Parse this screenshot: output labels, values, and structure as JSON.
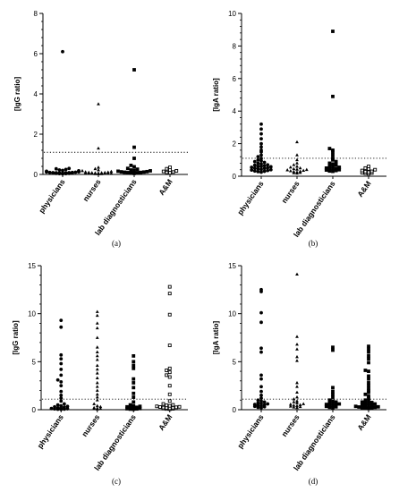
{
  "chart_data": [
    {
      "panel": "(a)",
      "type": "scatter",
      "ylabel": "[IgG ratio]",
      "ylim": [
        0,
        8
      ],
      "yticks": [
        0,
        2,
        4,
        6,
        8
      ],
      "cutoff": 1.1,
      "categories": [
        "physicians",
        "nurses",
        "lab diagnosticians",
        "A&M"
      ],
      "markers": [
        "circle",
        "triangle",
        "square",
        "open-square"
      ],
      "series": [
        {
          "values": [
            6.1,
            0.3,
            0.28,
            0.25,
            0.22,
            0.2,
            0.18,
            0.16,
            0.15,
            0.14,
            0.13,
            0.12,
            0.11,
            0.1,
            0.1,
            0.09,
            0.09,
            0.08,
            0.08,
            0.07,
            0.07,
            0.06,
            0.06,
            0.05,
            0.05,
            0.04,
            0.04,
            0.03
          ]
        },
        {
          "values": [
            3.5,
            1.3,
            0.35,
            0.28,
            0.22,
            0.18,
            0.15,
            0.12,
            0.11,
            0.1,
            0.09,
            0.08,
            0.08,
            0.07,
            0.07,
            0.06,
            0.06,
            0.05,
            0.05,
            0.04,
            0.04,
            0.03,
            0.03,
            0.02
          ]
        },
        {
          "values": [
            5.2,
            1.35,
            0.8,
            0.45,
            0.38,
            0.3,
            0.26,
            0.22,
            0.2,
            0.18,
            0.16,
            0.14,
            0.13,
            0.12,
            0.11,
            0.1,
            0.09,
            0.09,
            0.08,
            0.07,
            0.06,
            0.05
          ]
        },
        {
          "values": [
            0.35,
            0.28,
            0.22,
            0.18,
            0.15,
            0.12,
            0.1,
            0.08
          ]
        }
      ]
    },
    {
      "panel": "(b)",
      "type": "scatter",
      "ylabel": "[IgA ratio]",
      "ylim": [
        0,
        10
      ],
      "yticks": [
        0,
        2,
        4,
        6,
        8,
        10
      ],
      "cutoff": 1.1,
      "categories": [
        "physicians",
        "nurses",
        "lab diagnosticians",
        "A&M"
      ],
      "markers": [
        "circle",
        "triangle",
        "square",
        "open-square"
      ],
      "series": [
        {
          "values": [
            3.2,
            2.9,
            2.6,
            2.3,
            2.0,
            1.8,
            1.6,
            1.5,
            1.3,
            1.2,
            1.1,
            1.0,
            0.95,
            0.9,
            0.85,
            0.8,
            0.75,
            0.7,
            0.68,
            0.65,
            0.62,
            0.6,
            0.58,
            0.55,
            0.52,
            0.5,
            0.48,
            0.45,
            0.42,
            0.4,
            0.38,
            0.35,
            0.32,
            0.3,
            0.28,
            0.25
          ]
        },
        {
          "values": [
            2.1,
            1.3,
            1.0,
            0.8,
            0.7,
            0.6,
            0.55,
            0.5,
            0.45,
            0.42,
            0.4,
            0.38,
            0.35,
            0.32,
            0.3,
            0.28,
            0.25,
            0.22,
            0.2,
            0.18
          ]
        },
        {
          "values": [
            8.9,
            4.9,
            1.7,
            1.6,
            1.5,
            1.3,
            1.1,
            1.0,
            0.9,
            0.8,
            0.75,
            0.7,
            0.65,
            0.6,
            0.55,
            0.5,
            0.48,
            0.45,
            0.42,
            0.4,
            0.38,
            0.35,
            0.32,
            0.3
          ]
        },
        {
          "values": [
            0.6,
            0.5,
            0.45,
            0.4,
            0.35,
            0.3,
            0.28,
            0.25,
            0.22,
            0.2,
            0.18,
            0.15
          ]
        }
      ]
    },
    {
      "panel": "(c)",
      "type": "scatter",
      "ylabel": "[IgG ratio]",
      "ylim": [
        0,
        15
      ],
      "yticks": [
        0,
        5,
        10,
        15
      ],
      "cutoff": 1.1,
      "categories": [
        "physicians",
        "nurses",
        "lab diagnosticians",
        "A&M"
      ],
      "markers": [
        "circle",
        "triangle",
        "square",
        "open-square"
      ],
      "series": [
        {
          "values": [
            9.3,
            8.6,
            5.7,
            5.3,
            4.8,
            4.2,
            3.6,
            3.1,
            2.9,
            2.5,
            1.9,
            1.5,
            1.2,
            0.9,
            0.6,
            0.5,
            0.4,
            0.35,
            0.3,
            0.25,
            0.2,
            0.15,
            0.12,
            0.1,
            0.08,
            0.06,
            0.05,
            0.04
          ]
        },
        {
          "values": [
            10.2,
            9.8,
            9.0,
            8.5,
            7.5,
            6.5,
            6.0,
            5.6,
            5.2,
            4.6,
            4.2,
            3.8,
            3.3,
            2.8,
            2.4,
            2.0,
            1.6,
            1.3,
            1.0,
            0.6,
            0.4,
            0.3,
            0.2,
            0.15,
            0.1,
            0.08,
            0.05
          ]
        },
        {
          "values": [
            5.6,
            5.0,
            4.6,
            4.3,
            3.2,
            2.8,
            2.3,
            1.7,
            1.3,
            0.8,
            0.5,
            0.4,
            0.35,
            0.3,
            0.25,
            0.2,
            0.15,
            0.12,
            0.1,
            0.08,
            0.06,
            0.05
          ]
        },
        {
          "values": [
            12.8,
            12.1,
            9.9,
            6.7,
            4.3,
            4.1,
            3.9,
            3.6,
            3.4,
            2.5,
            1.6,
            0.9,
            0.6,
            0.5,
            0.45,
            0.4,
            0.35,
            0.3,
            0.28,
            0.25,
            0.22,
            0.2,
            0.18,
            0.15,
            0.12,
            0.1,
            0.08,
            0.06
          ]
        }
      ]
    },
    {
      "panel": "(d)",
      "type": "scatter",
      "ylabel": "[IgA ratio]",
      "ylim": [
        0,
        15
      ],
      "yticks": [
        0,
        5,
        10,
        15
      ],
      "cutoff": 1.1,
      "categories": [
        "physicians",
        "nurses",
        "lab diagnosticians",
        "A&M"
      ],
      "markers": [
        "circle",
        "triangle",
        "square",
        "square"
      ],
      "series": [
        {
          "values": [
            12.5,
            12.3,
            10.1,
            9.1,
            6.4,
            6.0,
            3.6,
            3.2,
            2.4,
            1.9,
            1.5,
            1.2,
            1.0,
            0.9,
            0.8,
            0.7,
            0.65,
            0.6,
            0.55,
            0.5,
            0.45,
            0.4,
            0.35,
            0.3,
            0.25,
            0.2
          ]
        },
        {
          "values": [
            14.1,
            7.6,
            6.8,
            6.3,
            5.5,
            5.1,
            2.8,
            2.4,
            1.8,
            1.3,
            1.1,
            0.9,
            0.8,
            0.7,
            0.6,
            0.55,
            0.5,
            0.45,
            0.4,
            0.35,
            0.3,
            0.25,
            0.2
          ]
        },
        {
          "values": [
            6.5,
            6.2,
            2.3,
            1.9,
            1.6,
            1.3,
            1.0,
            0.9,
            0.8,
            0.7,
            0.65,
            0.6,
            0.55,
            0.5,
            0.45,
            0.4,
            0.35,
            0.3,
            0.25,
            0.2
          ]
        },
        {
          "values": [
            6.6,
            6.3,
            6.0,
            5.6,
            5.3,
            4.9,
            4.1,
            4.0,
            3.5,
            3.2,
            2.8,
            2.5,
            2.2,
            2.0,
            1.8,
            1.6,
            1.4,
            1.2,
            1.0,
            0.9,
            0.8,
            0.75,
            0.7,
            0.65,
            0.6,
            0.55,
            0.5,
            0.45,
            0.4,
            0.35,
            0.3,
            0.28,
            0.25,
            0.22,
            0.2,
            0.18,
            0.15,
            0.12
          ]
        }
      ]
    }
  ]
}
